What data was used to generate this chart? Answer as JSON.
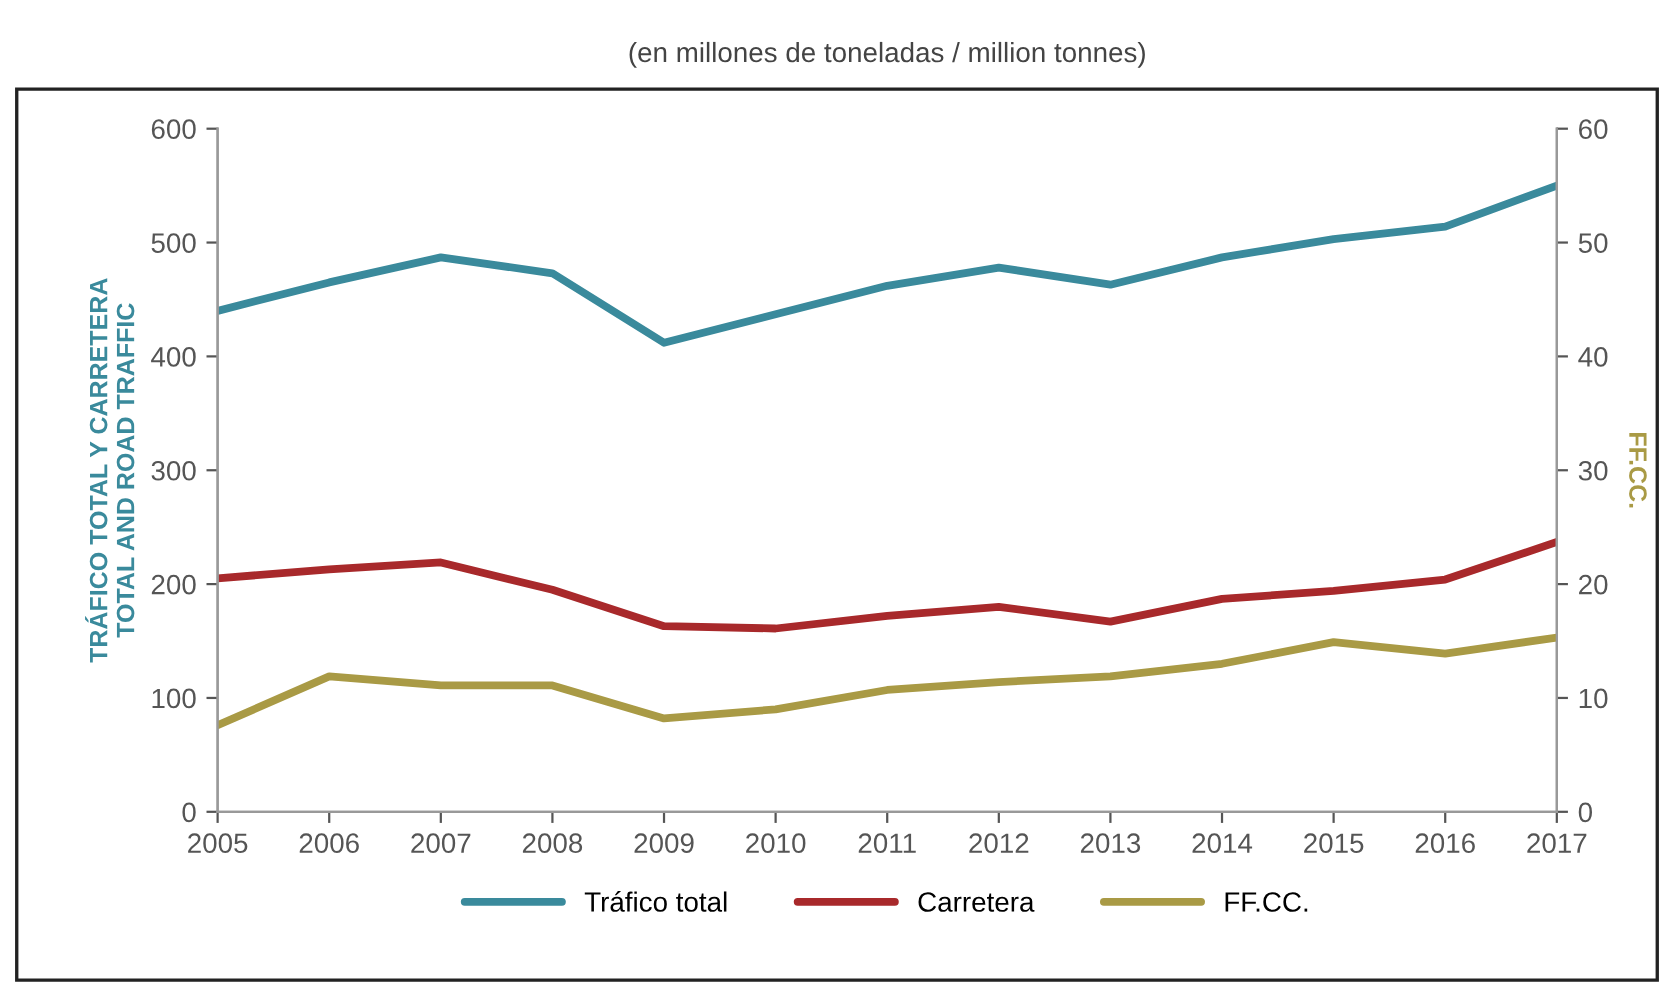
{
  "chart_data": {
    "type": "line",
    "title": "(en millones de toneladas / million tonnes)",
    "ylabel": "TRÁFICO TOTAL Y CARRETERA\nTOTAL AND ROAD TRAFFIC",
    "y2label": "FF.CC.",
    "x": [
      2005,
      2006,
      2007,
      2008,
      2009,
      2010,
      2011,
      2012,
      2013,
      2014,
      2015,
      2016,
      2017
    ],
    "series": [
      {
        "name": "Tráfico total",
        "color": "#3a8a9c",
        "values": [
          440,
          465,
          487,
          473,
          412,
          437,
          462,
          478,
          463,
          487,
          503,
          514,
          550
        ]
      },
      {
        "name": "Carretera",
        "color": "#a8292b",
        "values": [
          205,
          213,
          219,
          195,
          163,
          161,
          172,
          180,
          167,
          187,
          194,
          204,
          237
        ]
      },
      {
        "name": "FF.CC.",
        "color": "#a99a45",
        "axis": "y2",
        "values": [
          7.6,
          11.9,
          11.1,
          11.1,
          8.2,
          9.0,
          10.7,
          11.4,
          11.9,
          13.0,
          14.9,
          13.9,
          15.3
        ]
      }
    ],
    "xlim": [
      2005,
      2017
    ],
    "xticks": [
      2005,
      2006,
      2007,
      2008,
      2009,
      2010,
      2011,
      2012,
      2013,
      2014,
      2015,
      2016,
      2017
    ],
    "ylim": [
      0,
      600
    ],
    "yticks": [
      0,
      100,
      200,
      300,
      400,
      500,
      600
    ],
    "y2lim": [
      0,
      60
    ],
    "y2ticks": [
      0,
      10,
      20,
      30,
      40,
      50,
      60
    ],
    "grid": false,
    "legend": "bottom",
    "marker": "none",
    "line_style": "solid"
  }
}
